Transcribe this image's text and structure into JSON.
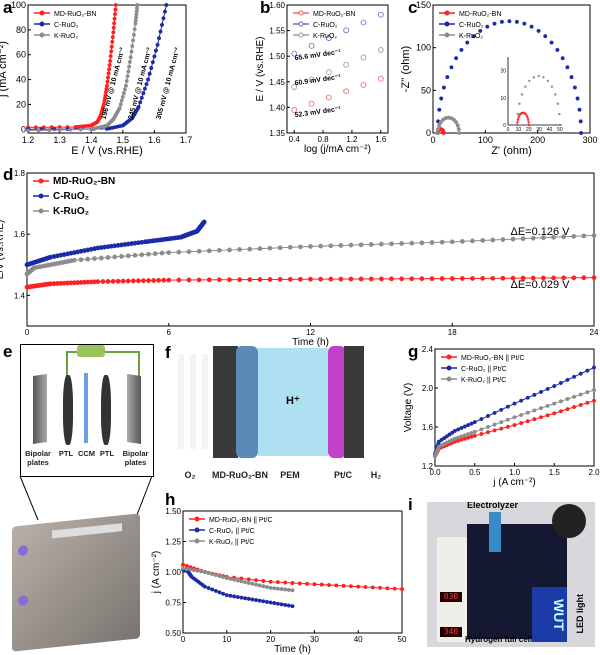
{
  "panels": {
    "a": "a",
    "b": "b",
    "c": "c",
    "d": "d",
    "e": "e",
    "f": "f",
    "g": "g",
    "h": "h",
    "i": "i"
  },
  "colors": {
    "md": "#ff2020",
    "c": "#1a2aa8",
    "k": "#8c8c8c"
  },
  "chart_data": [
    {
      "id": "a",
      "type": "line",
      "xlabel": "E / V (vs.RHE)",
      "ylabel": "j (mA cm⁻²)",
      "xlim": [
        1.2,
        1.7
      ],
      "ylim": [
        -3,
        100
      ],
      "xticks": [
        1.2,
        1.3,
        1.4,
        1.5,
        1.6,
        1.7
      ],
      "yticks": [
        0,
        20,
        40,
        60,
        80,
        100
      ],
      "legend": "top-left",
      "series": [
        {
          "name": "MD-RuO₂-BN",
          "color": "#ff2020",
          "points": [
            [
              1.2,
              1.5
            ],
            [
              1.35,
              1.8
            ],
            [
              1.4,
              3
            ],
            [
              1.42,
              6
            ],
            [
              1.43,
              11
            ],
            [
              1.44,
              20
            ],
            [
              1.45,
              35
            ],
            [
              1.46,
              55
            ],
            [
              1.47,
              78
            ],
            [
              1.478,
              100
            ]
          ]
        },
        {
          "name": "C-RuO₂",
          "color": "#1a2aa8",
          "points": [
            [
              1.2,
              0
            ],
            [
              1.45,
              0.3
            ],
            [
              1.5,
              3
            ],
            [
              1.53,
              9
            ],
            [
              1.55,
              18
            ],
            [
              1.58,
              40
            ],
            [
              1.61,
              68
            ],
            [
              1.638,
              100
            ]
          ]
        },
        {
          "name": "K-RuO₂",
          "color": "#8c8c8c",
          "points": [
            [
              1.2,
              -1
            ],
            [
              1.4,
              0
            ],
            [
              1.45,
              3
            ],
            [
              1.47,
              8
            ],
            [
              1.49,
              17
            ],
            [
              1.51,
              35
            ],
            [
              1.525,
              58
            ],
            [
              1.54,
              85
            ],
            [
              1.546,
              100
            ]
          ]
        }
      ],
      "annotations": [
        "196 mV @ 10 mA cm⁻²",
        "245 mV @ 10 mA cm⁻²",
        "305 mV @ 10 mA cm⁻²"
      ]
    },
    {
      "id": "b",
      "type": "scatter",
      "xlabel": "log (j/mA cm⁻²)",
      "ylabel": "E / V (vs.RHE)",
      "xlim": [
        0.3,
        1.7
      ],
      "ylim": [
        1.35,
        1.6
      ],
      "xticks": [
        0.4,
        0.8,
        1.2,
        1.6
      ],
      "yticks": [
        1.35,
        1.4,
        1.45,
        1.5,
        1.55,
        1.6
      ],
      "legend": "top-left",
      "series": [
        {
          "name": "MD-RuO₂-BN",
          "color": "#ff6060",
          "points": [
            [
              0.4,
              1.395
            ],
            [
              1.6,
              1.456
            ]
          ]
        },
        {
          "name": "C-RuO₂",
          "color": "#6a6ac8",
          "points": [
            [
              0.4,
              1.505
            ],
            [
              1.6,
              1.581
            ]
          ]
        },
        {
          "name": "K-RuO₂",
          "color": "#9a9a9a",
          "points": [
            [
              0.4,
              1.44
            ],
            [
              1.6,
              1.512
            ]
          ]
        }
      ],
      "annotations": [
        "65.6 mV dec⁻¹",
        "60.9 mV dec⁻¹",
        "52.3 mV dec⁻¹"
      ]
    },
    {
      "id": "c",
      "type": "scatter",
      "xlabel": "Z' (ohm)",
      "ylabel": "-Z'' (ohm)",
      "xlim": [
        0,
        300
      ],
      "ylim": [
        0,
        150
      ],
      "xticks": [
        0,
        100,
        200,
        300
      ],
      "yticks": [
        0,
        50,
        100,
        150
      ],
      "legend": "top-left",
      "series": [
        {
          "name": "MD-RuO₂-BN",
          "color": "#ff2020",
          "arc": [
            9,
            20,
            4.5
          ]
        },
        {
          "name": "C-RuO₂",
          "color": "#1a2aa8",
          "arc": [
            9,
            283,
            131
          ]
        },
        {
          "name": "K-RuO₂",
          "color": "#8c8c8c",
          "arc": [
            9,
            50,
            18
          ]
        }
      ],
      "inset": {
        "xlim": [
          0,
          52
        ],
        "ylim": [
          0,
          25
        ],
        "xticks": [
          0,
          10,
          20,
          30,
          40,
          50
        ],
        "yticks": [
          0,
          10,
          20
        ]
      }
    },
    {
      "id": "d",
      "type": "line",
      "xlabel": "Time (h)",
      "ylabel": "E/V (vs.RHE)",
      "xlim": [
        0,
        24
      ],
      "ylim": [
        1.3,
        1.8
      ],
      "xticks": [
        0,
        6,
        12,
        18,
        24
      ],
      "yticks": [
        1.4,
        1.6,
        1.8
      ],
      "legend": "top-left",
      "series": [
        {
          "name": "MD-RuO₂-BN",
          "color": "#ff2020",
          "points": [
            [
              0,
              1.427
            ],
            [
              1,
              1.438
            ],
            [
              3,
              1.445
            ],
            [
              6,
              1.45
            ],
            [
              12,
              1.453
            ],
            [
              18,
              1.455
            ],
            [
              24,
              1.458
            ]
          ]
        },
        {
          "name": "C-RuO₂",
          "color": "#1a2aa8",
          "points": [
            [
              0,
              1.5
            ],
            [
              1,
              1.525
            ],
            [
              3,
              1.555
            ],
            [
              5,
              1.575
            ],
            [
              6.5,
              1.59
            ],
            [
              7.2,
              1.61
            ],
            [
              7.5,
              1.64
            ]
          ]
        },
        {
          "name": "K-RuO₂",
          "color": "#8c8c8c",
          "points": [
            [
              0,
              1.47
            ],
            [
              0.3,
              1.49
            ],
            [
              2,
              1.515
            ],
            [
              6,
              1.54
            ],
            [
              12,
              1.56
            ],
            [
              18,
              1.575
            ],
            [
              24,
              1.596
            ]
          ]
        }
      ],
      "annotations": [
        "ΔE=0.126 V",
        "ΔE=0.029 V"
      ]
    },
    {
      "id": "g",
      "type": "line",
      "xlabel": "j (A cm⁻²)",
      "ylabel": "Voltage (V)",
      "xlim": [
        0,
        2
      ],
      "ylim": [
        1.2,
        2.4
      ],
      "xticks": [
        0.0,
        0.5,
        1.0,
        1.5,
        2.0
      ],
      "yticks": [
        1.2,
        1.6,
        2.0,
        2.4
      ],
      "legend": "top-left",
      "series": [
        {
          "name": "MD-RuO₂-BN || Pt/C",
          "color": "#ff2020",
          "points": [
            [
              0,
              1.3
            ],
            [
              0.05,
              1.38
            ],
            [
              0.25,
              1.45
            ],
            [
              0.5,
              1.51
            ],
            [
              1.0,
              1.62
            ],
            [
              1.5,
              1.74
            ],
            [
              2.0,
              1.87
            ]
          ]
        },
        {
          "name": "C-RuO₂ || Pt/C",
          "color": "#1a2aa8",
          "points": [
            [
              0,
              1.32
            ],
            [
              0.05,
              1.45
            ],
            [
              0.25,
              1.56
            ],
            [
              0.5,
              1.65
            ],
            [
              1.0,
              1.84
            ],
            [
              1.5,
              2.02
            ],
            [
              2.0,
              2.21
            ]
          ]
        },
        {
          "name": "K-RuO₂ || Pt/C",
          "color": "#8c8c8c",
          "points": [
            [
              0,
              1.3
            ],
            [
              0.05,
              1.4
            ],
            [
              0.25,
              1.48
            ],
            [
              0.5,
              1.55
            ],
            [
              1.0,
              1.7
            ],
            [
              1.5,
              1.84
            ],
            [
              2.0,
              1.98
            ]
          ]
        }
      ]
    },
    {
      "id": "h",
      "type": "line",
      "xlabel": "Time (h)",
      "ylabel": "j (A cm⁻²)",
      "xlim": [
        0,
        50
      ],
      "ylim": [
        0.5,
        1.5
      ],
      "xticks": [
        0,
        10,
        20,
        30,
        40,
        50
      ],
      "yticks": [
        0.5,
        0.75,
        1.0,
        1.25,
        1.5
      ],
      "legend": "top-left",
      "series": [
        {
          "name": "MD-RuO₂-BN || Pt/C",
          "color": "#ff2020",
          "points": [
            [
              0,
              1.06
            ],
            [
              5,
              1.0
            ],
            [
              10,
              0.96
            ],
            [
              20,
              0.92
            ],
            [
              30,
              0.9
            ],
            [
              40,
              0.88
            ],
            [
              50,
              0.86
            ]
          ]
        },
        {
          "name": "C-RuO₂ || Pt/C",
          "color": "#1a2aa8",
          "points": [
            [
              0,
              1.02
            ],
            [
              1,
              1.01
            ],
            [
              2,
              0.96
            ],
            [
              5,
              0.88
            ],
            [
              10,
              0.81
            ],
            [
              15,
              0.78
            ],
            [
              20,
              0.75
            ],
            [
              25,
              0.72
            ]
          ]
        },
        {
          "name": "K-RuO₂ || Pt/C",
          "color": "#8c8c8c",
          "points": [
            [
              0,
              1.03
            ],
            [
              5,
              1.0
            ],
            [
              10,
              0.95
            ],
            [
              15,
              0.91
            ],
            [
              20,
              0.87
            ],
            [
              25,
              0.85
            ]
          ]
        }
      ]
    }
  ],
  "diagram_e": {
    "labels": [
      "Bipolar plates",
      "PTL",
      "CCM",
      "PTL",
      "Bipolar plates"
    ]
  },
  "diagram_f": {
    "labels": [
      "O₂",
      "MD-RuO₂-BN",
      "PEM",
      "Pt/C",
      "H₂"
    ],
    "ion": "H⁺"
  },
  "photo_i": {
    "labels": [
      "Electrolyzer",
      "Hydrogen full cell",
      "LED light"
    ],
    "displays": [
      "030",
      "340"
    ],
    "sign": "WUT"
  }
}
